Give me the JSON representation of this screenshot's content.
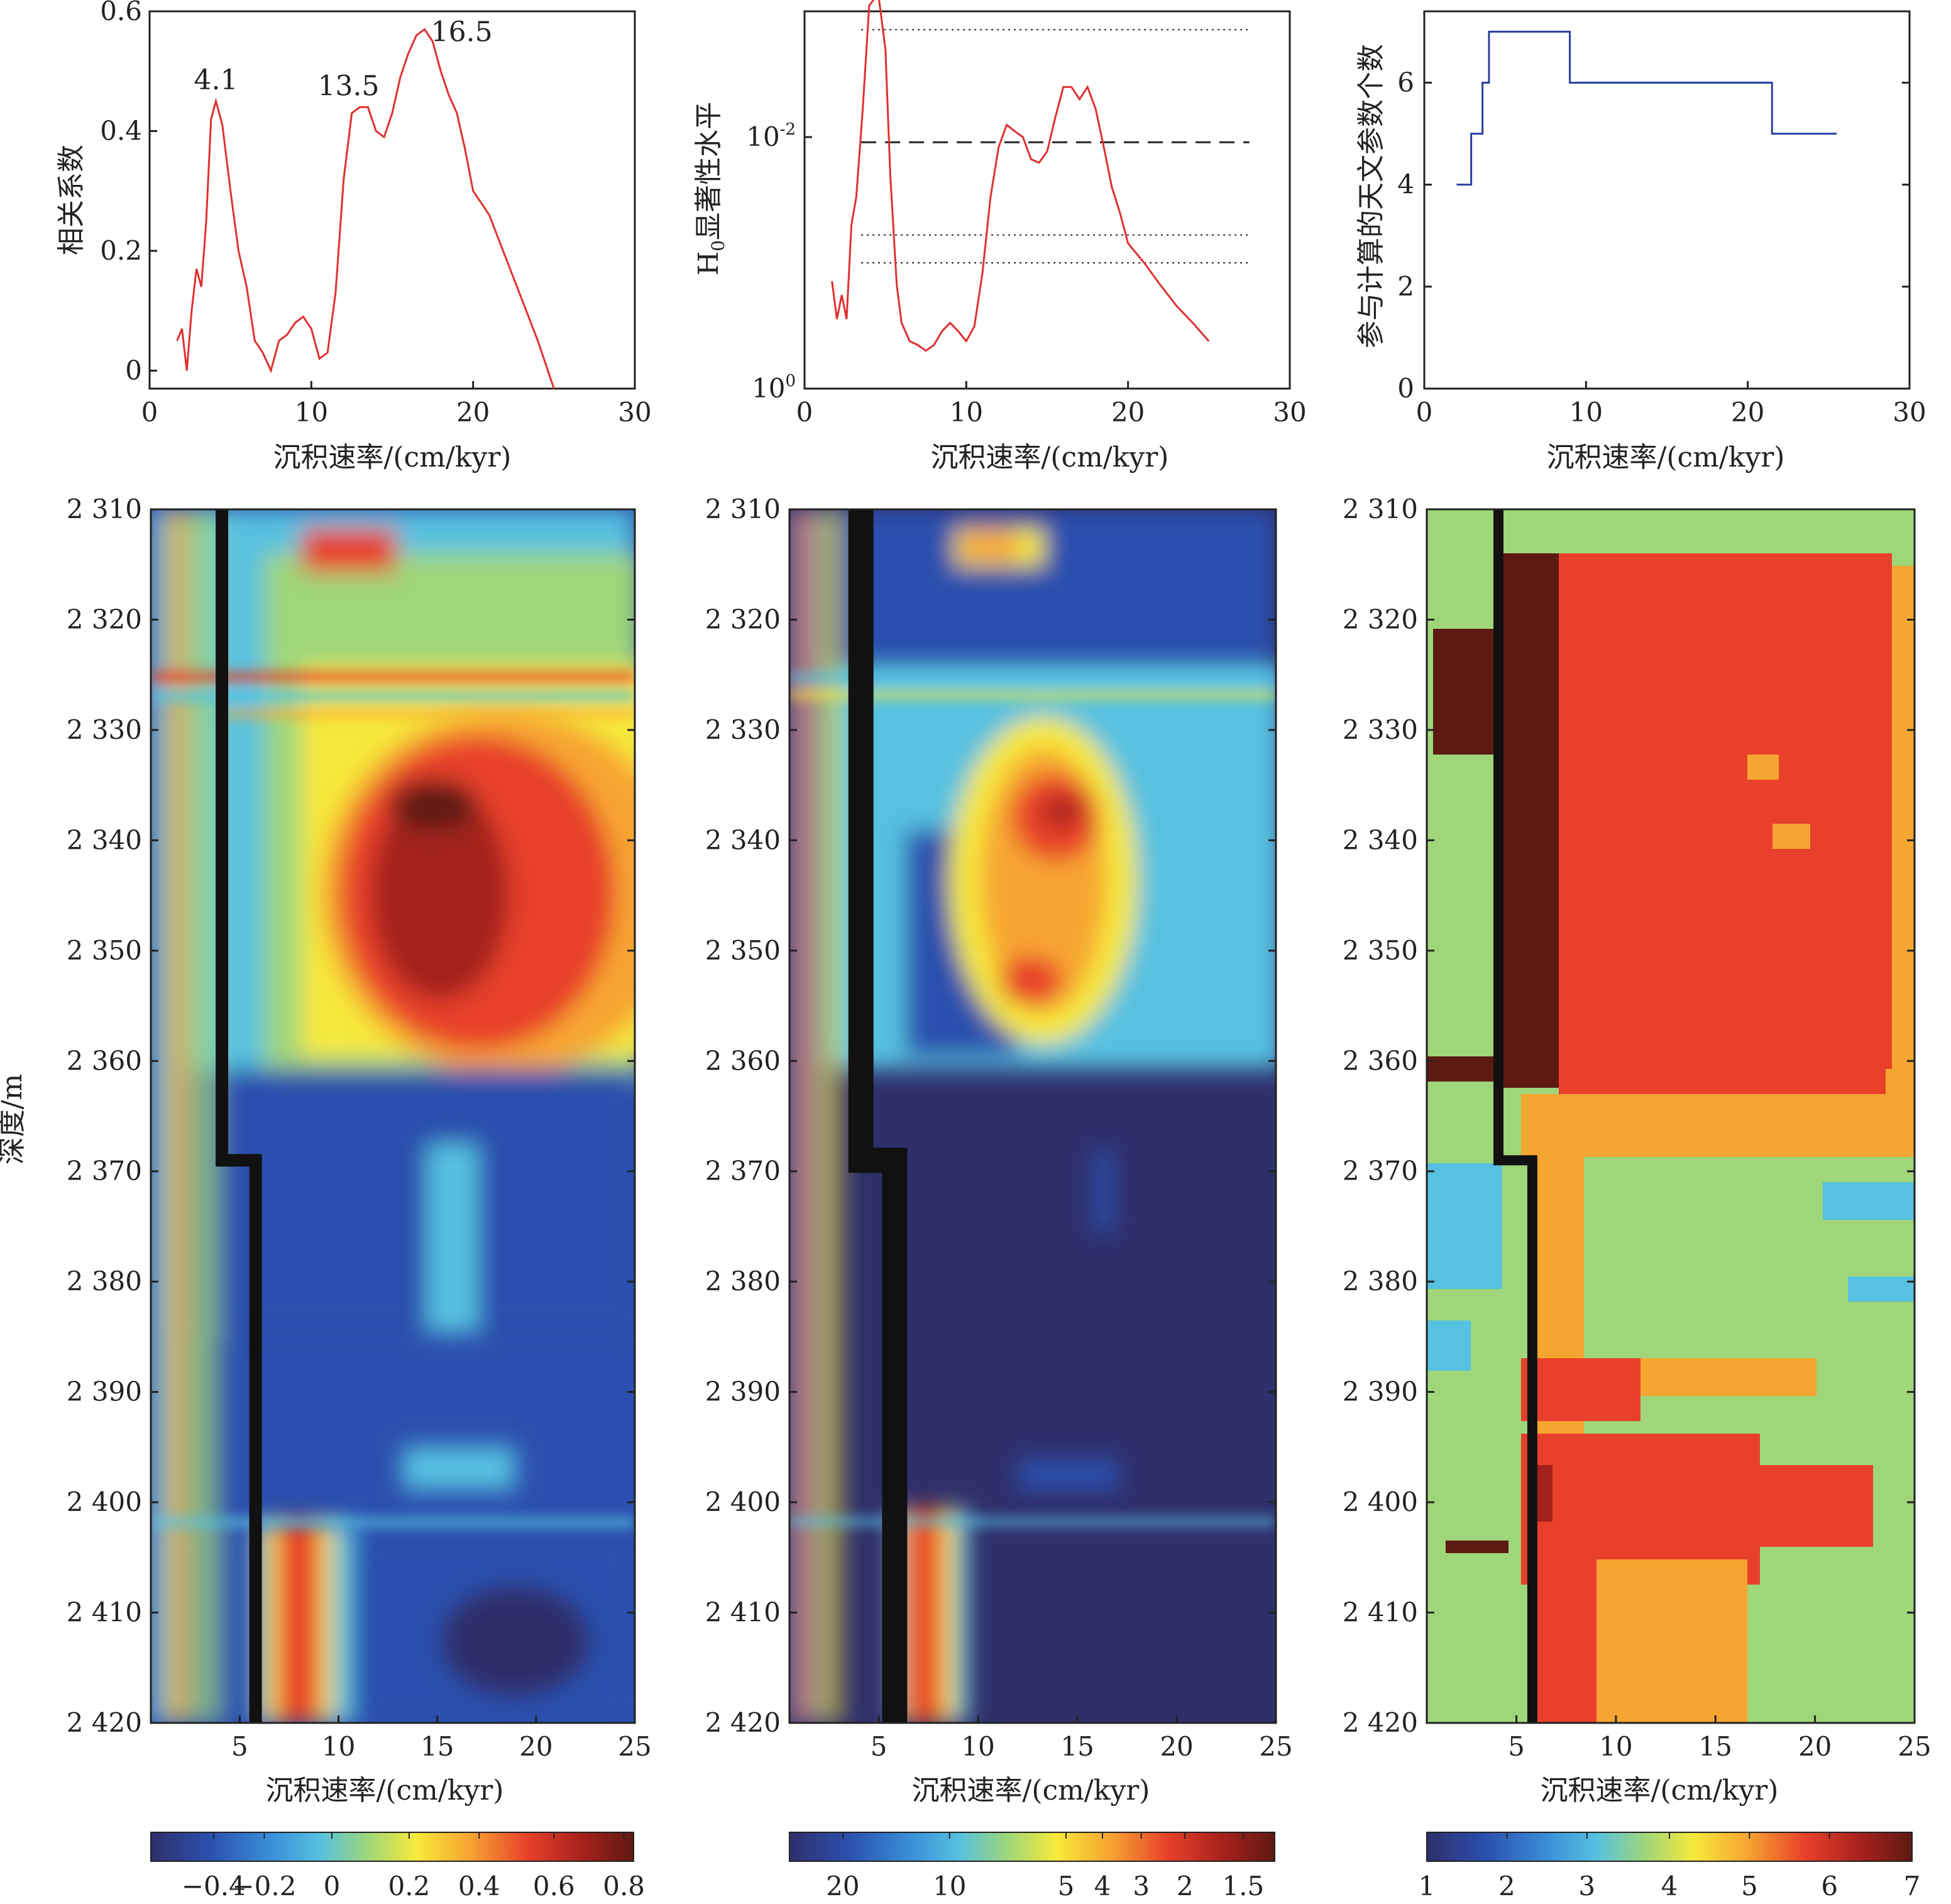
{
  "chart_data": [
    {
      "id": "top-correlation",
      "type": "line",
      "xlabel": "沉积速率/(cm/kyr)",
      "ylabel": "相关系数",
      "xlim": [
        0,
        30
      ],
      "ylim": [
        -0.03,
        0.6
      ],
      "xticks": [
        0,
        10,
        20,
        30
      ],
      "yticks": [
        0,
        0.2,
        0.4,
        0.6
      ],
      "line_color": "#e03030",
      "series": [
        {
          "x": [
            1.7,
            2.0,
            2.3,
            2.6,
            2.9,
            3.2,
            3.5,
            3.8,
            4.1,
            4.5,
            5.0,
            5.5,
            6.0,
            6.5,
            7.0,
            7.5,
            8.0,
            8.5,
            9.0,
            9.5,
            10.0,
            10.5,
            11.0,
            11.5,
            12.0,
            12.5,
            13.0,
            13.5,
            14.0,
            14.5,
            15.0,
            15.5,
            16.0,
            16.5,
            17.0,
            17.5,
            18.0,
            18.5,
            19.0,
            19.5,
            20.0,
            21.0,
            22.0,
            23.0,
            24.0,
            25.0
          ],
          "y": [
            0.05,
            0.07,
            0.0,
            0.1,
            0.17,
            0.14,
            0.25,
            0.42,
            0.45,
            0.41,
            0.3,
            0.2,
            0.14,
            0.05,
            0.03,
            0.0,
            0.05,
            0.06,
            0.08,
            0.09,
            0.07,
            0.02,
            0.03,
            0.13,
            0.32,
            0.43,
            0.44,
            0.44,
            0.4,
            0.39,
            0.43,
            0.49,
            0.53,
            0.56,
            0.57,
            0.55,
            0.5,
            0.46,
            0.43,
            0.37,
            0.3,
            0.26,
            0.19,
            0.12,
            0.05,
            -0.03
          ]
        }
      ],
      "annotations": [
        {
          "text": "4.1",
          "x": 4.1,
          "y": 0.47
        },
        {
          "text": "13.5",
          "x": 12.3,
          "y": 0.46
        },
        {
          "text": "16.5",
          "x": 19.3,
          "y": 0.55
        }
      ]
    },
    {
      "id": "top-significance",
      "type": "line",
      "xlabel": "沉积速率/(cm/kyr)",
      "ylabel": "H0显著性水平",
      "ylabel_main": "H",
      "ylabel_sub": "0",
      "ylabel_rest": "显著性水平",
      "y_scale": "log",
      "y_reversed": true,
      "xlim": [
        0,
        30
      ],
      "ylim": [
        1,
        0.001
      ],
      "xticks": [
        0,
        10,
        20,
        30
      ],
      "ytick_labels": [
        {
          "base": "10",
          "exp": "0",
          "value": 1
        },
        {
          "base": "10",
          "exp": "-2",
          "value": 0.01
        }
      ],
      "ref_lines": [
        {
          "value": 0.0014,
          "style": "dotted"
        },
        {
          "value": 0.011,
          "style": "dashed"
        },
        {
          "value": 0.06,
          "style": "dotted"
        },
        {
          "value": 0.1,
          "style": "dotted"
        }
      ],
      "line_color": "#e03030",
      "series": [
        {
          "x": [
            1.7,
            2.0,
            2.3,
            2.6,
            2.9,
            3.2,
            3.6,
            4.0,
            4.3,
            4.6,
            5.0,
            5.3,
            5.7,
            6.0,
            6.5,
            7.0,
            7.5,
            8.0,
            8.5,
            9.0,
            9.5,
            10.0,
            10.5,
            11.0,
            11.5,
            12.0,
            12.5,
            13.0,
            13.5,
            14.0,
            14.5,
            15.0,
            15.5,
            16.0,
            16.5,
            17.0,
            17.5,
            18.0,
            18.5,
            19.0,
            19.5,
            20.0,
            21.0,
            22.0,
            23.0,
            24.0,
            25.0
          ],
          "y": [
            0.14,
            0.28,
            0.18,
            0.28,
            0.05,
            0.03,
            0.006,
            0.0009,
            0.0008,
            0.0008,
            0.002,
            0.02,
            0.15,
            0.3,
            0.42,
            0.45,
            0.5,
            0.45,
            0.35,
            0.3,
            0.35,
            0.42,
            0.32,
            0.12,
            0.03,
            0.012,
            0.008,
            0.009,
            0.01,
            0.015,
            0.016,
            0.013,
            0.007,
            0.004,
            0.004,
            0.005,
            0.004,
            0.006,
            0.012,
            0.025,
            0.04,
            0.07,
            0.1,
            0.15,
            0.22,
            0.3,
            0.42
          ]
        }
      ]
    },
    {
      "id": "top-param-count",
      "type": "line",
      "step": true,
      "xlabel": "沉积速率/(cm/kyr)",
      "ylabel": "参与计算的天文参数个数",
      "xlim": [
        0,
        30
      ],
      "ylim": [
        0,
        7.4
      ],
      "xticks": [
        0,
        10,
        20,
        30
      ],
      "yticks": [
        0,
        2,
        4,
        6
      ],
      "line_color": "#2b3f9e",
      "series": [
        {
          "x": [
            2.0,
            2.9,
            3.6,
            4.0,
            9.0,
            21.5,
            25.5
          ],
          "y": [
            4,
            5,
            6,
            7,
            6,
            5,
            5
          ]
        }
      ]
    },
    {
      "id": "heatmap-correlation",
      "type": "heatmap",
      "xlabel": "沉积速率/(cm/kyr)",
      "ylabel": "深度/m",
      "xlim": [
        0.5,
        25
      ],
      "ylim": [
        2310,
        2420
      ],
      "xticks": [
        5,
        10,
        15,
        20,
        25
      ],
      "yticks": [
        2310,
        2320,
        2330,
        2340,
        2350,
        2360,
        2370,
        2380,
        2390,
        2400,
        2410,
        2420
      ],
      "ytick_labels": [
        "2 310",
        "2 320",
        "2 330",
        "2 340",
        "2 350",
        "2 360",
        "2 370",
        "2 380",
        "2 390",
        "2 400",
        "2 410",
        "2 420"
      ],
      "optimal_path": {
        "x": [
          4.1,
          4.1,
          5.8,
          5.8
        ],
        "y": [
          2310,
          2369,
          2369,
          2420
        ]
      },
      "colorbar": {
        "tick_labels": [
          "−0.4",
          "−0.2",
          "0",
          "0.2",
          "0.4",
          "0.6",
          "0.8"
        ],
        "min": -0.5,
        "max": 0.85
      }
    },
    {
      "id": "heatmap-significance",
      "type": "heatmap",
      "xlabel": "沉积速率/(cm/kyr)",
      "xlim": [
        0.5,
        25
      ],
      "ylim": [
        2310,
        2420
      ],
      "xticks": [
        5,
        10,
        15,
        20,
        25
      ],
      "yticks": [
        2310,
        2320,
        2330,
        2340,
        2350,
        2360,
        2370,
        2380,
        2390,
        2400,
        2410,
        2420
      ],
      "ytick_labels": [
        "2 310",
        "2 320",
        "2 330",
        "2 340",
        "2 350",
        "2 360",
        "2 370",
        "2 380",
        "2 390",
        "2 400",
        "2 410",
        "2 420"
      ],
      "optimal_path": {
        "x": [
          4.1,
          4.1,
          5.8,
          5.8
        ],
        "y": [
          2310,
          2369,
          2369,
          2420
        ]
      },
      "colorbar": {
        "tick_labels": [
          "20",
          "10",
          "5",
          "4",
          "3",
          "2",
          "1.5"
        ]
      }
    },
    {
      "id": "heatmap-param-count",
      "type": "heatmap",
      "xlabel": "沉积速率/(cm/kyr)",
      "xlim": [
        0.5,
        25
      ],
      "ylim": [
        2310,
        2420
      ],
      "xticks": [
        5,
        10,
        15,
        20,
        25
      ],
      "yticks": [
        2310,
        2320,
        2330,
        2340,
        2350,
        2360,
        2370,
        2380,
        2390,
        2400,
        2410,
        2420
      ],
      "ytick_labels": [
        "2 310",
        "2 320",
        "2 330",
        "2 340",
        "2 350",
        "2 360",
        "2 370",
        "2 380",
        "2 390",
        "2 400",
        "2 410",
        "2 420"
      ],
      "optimal_path": {
        "x": [
          4.1,
          4.1,
          5.8,
          5.8
        ],
        "y": [
          2310,
          2369,
          2369,
          2420
        ]
      },
      "colorbar": {
        "tick_labels": [
          "1",
          "2",
          "3",
          "4",
          "5",
          "6",
          "7"
        ],
        "min": 1,
        "max": 7
      }
    }
  ],
  "colors": {
    "curve_red": "#e03030",
    "curve_blue": "#2b3f9e",
    "annotation_blue": "#3b4a8c",
    "jet": [
      "#2f2f6b",
      "#2b4fae",
      "#3a8fd8",
      "#56c1e0",
      "#9fd67a",
      "#f6e93b",
      "#f7a531",
      "#e8402b",
      "#a3201c",
      "#5e1a12"
    ]
  }
}
